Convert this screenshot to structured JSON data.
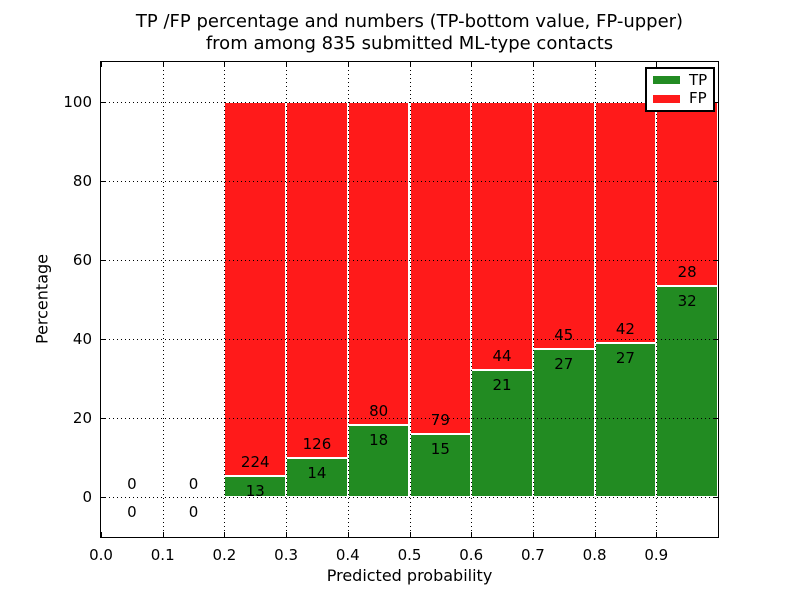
{
  "title": {
    "line1": "TP /FP percentage and numbers (TP-bottom value, FP-upper)",
    "line2": "from among 835 submitted ML-type contacts"
  },
  "axes": {
    "xlabel": "Predicted probability",
    "ylabel": "Percentage",
    "xlim": [
      0.0,
      1.0
    ],
    "ylim": [
      -10,
      110
    ],
    "grid_style": "dotted",
    "xticks": [
      {
        "v": 0.0,
        "label": "0.0"
      },
      {
        "v": 0.1,
        "label": "0.1"
      },
      {
        "v": 0.2,
        "label": "0.2"
      },
      {
        "v": 0.3,
        "label": "0.3"
      },
      {
        "v": 0.4,
        "label": "0.4"
      },
      {
        "v": 0.5,
        "label": "0.5"
      },
      {
        "v": 0.6,
        "label": "0.6"
      },
      {
        "v": 0.7,
        "label": "0.7"
      },
      {
        "v": 0.8,
        "label": "0.8"
      },
      {
        "v": 0.9,
        "label": "0.9"
      }
    ],
    "yticks": [
      {
        "v": 0,
        "label": "0"
      },
      {
        "v": 20,
        "label": "20"
      },
      {
        "v": 40,
        "label": "40"
      },
      {
        "v": 60,
        "label": "60"
      },
      {
        "v": 80,
        "label": "80"
      },
      {
        "v": 100,
        "label": "100"
      }
    ]
  },
  "legend": {
    "position": "upper right",
    "items": [
      {
        "label": "TP",
        "color": "#228B22"
      },
      {
        "label": "FP",
        "color": "#FF1A1A"
      }
    ]
  },
  "chart_data": {
    "type": "bar",
    "stacked": true,
    "normalized_to_percent": true,
    "title": "TP /FP percentage and numbers (TP-bottom value, FP-upper)\nfrom among 835 submitted ML-type contacts",
    "xlabel": "Predicted probability",
    "ylabel": "Percentage",
    "total_contacts": 835,
    "bin_width": 0.1,
    "bin_starts": [
      0.0,
      0.1,
      0.2,
      0.3,
      0.4,
      0.5,
      0.6,
      0.7,
      0.8,
      0.9
    ],
    "series": [
      {
        "name": "TP",
        "color": "#228B22",
        "counts": [
          0,
          0,
          13,
          14,
          18,
          15,
          21,
          27,
          27,
          32
        ]
      },
      {
        "name": "FP",
        "color": "#FF1A1A",
        "counts": [
          0,
          0,
          224,
          126,
          80,
          79,
          44,
          45,
          42,
          28
        ]
      }
    ],
    "tp_percent": [
      0,
      0,
      5.5,
      10.0,
      18.4,
      16.0,
      32.3,
      37.5,
      39.1,
      53.3
    ],
    "label_rule": "TP count printed below stack boundary, FP count printed above stack boundary"
  }
}
